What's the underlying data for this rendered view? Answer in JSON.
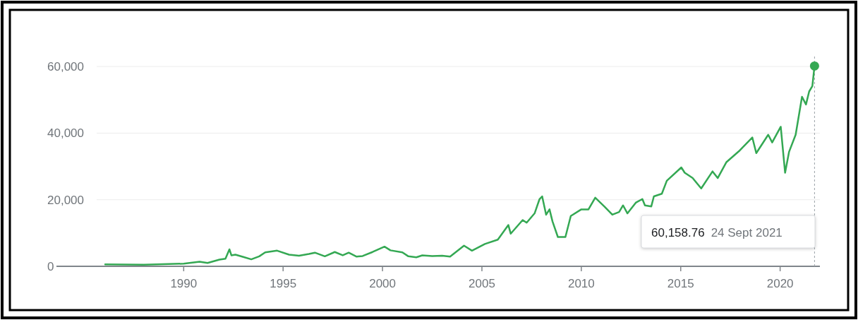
{
  "chart_data": {
    "type": "line",
    "x": [
      1986.05,
      1988.0,
      1990.0,
      1990.8,
      1991.2,
      1991.8,
      1992.1,
      1992.3,
      1992.4,
      1992.6,
      1993.0,
      1993.4,
      1993.8,
      1994.1,
      1994.7,
      1995.3,
      1995.8,
      1996.3,
      1996.6,
      1997.1,
      1997.6,
      1998.0,
      1998.3,
      1998.7,
      1999.0,
      1999.5,
      2000.1,
      2000.4,
      2001.0,
      2001.3,
      2001.7,
      2002.0,
      2002.5,
      2003.0,
      2003.4,
      2004.1,
      2004.5,
      2005.15,
      2005.8,
      2006.33,
      2006.45,
      2007.05,
      2007.25,
      2007.65,
      2007.9,
      2008.03,
      2008.23,
      2008.4,
      2008.55,
      2008.82,
      2009.2,
      2009.47,
      2010.0,
      2010.36,
      2010.7,
      2011.17,
      2011.56,
      2011.9,
      2012.1,
      2012.32,
      2012.74,
      2013.07,
      2013.2,
      2013.52,
      2013.65,
      2014.05,
      2014.3,
      2015.03,
      2015.2,
      2015.6,
      2016.03,
      2016.6,
      2016.86,
      2017.3,
      2017.97,
      2018.6,
      2018.8,
      2019.4,
      2019.6,
      2020.03,
      2020.25,
      2020.45,
      2020.78,
      2021.1,
      2021.3,
      2021.46,
      2021.62,
      2021.73
    ],
    "series": [
      {
        "color": "#34a853",
        "values": [
          600,
          500,
          800,
          1400,
          1000,
          2000,
          2300,
          5100,
          3300,
          3500,
          2800,
          2100,
          3000,
          4200,
          4700,
          3500,
          3200,
          3700,
          4100,
          3000,
          4300,
          3300,
          4100,
          2900,
          3100,
          4300,
          5900,
          4800,
          4200,
          3000,
          2700,
          3300,
          3100,
          3200,
          2900,
          6200,
          4700,
          6700,
          8000,
          12400,
          9800,
          13900,
          13100,
          15900,
          20200,
          21000,
          15500,
          17100,
          13500,
          8800,
          8800,
          15100,
          17100,
          17100,
          20600,
          17900,
          15500,
          16300,
          18300,
          15900,
          19100,
          20200,
          18300,
          18000,
          21000,
          21800,
          25700,
          29700,
          28100,
          26500,
          23400,
          28500,
          26500,
          31300,
          34800,
          38700,
          34000,
          39500,
          37200,
          41900,
          28100,
          34400,
          39500,
          50900,
          48600,
          52500,
          54100,
          60158.76
        ]
      },
      {
        "type": "scatter",
        "color": "#34a853",
        "marker": "circle",
        "x": [
          2021.73
        ],
        "values": [
          60158.76
        ]
      }
    ],
    "xlim": [
      1983.6,
      2022.0
    ],
    "ylim": [
      0,
      63000
    ],
    "xticks": [
      1990,
      1995,
      2000,
      2005,
      2010,
      2015,
      2020
    ],
    "yticks": [
      0,
      {
        "value": 20000,
        "label": "20,000"
      },
      {
        "value": 40000,
        "label": "40,000"
      },
      {
        "value": 60000,
        "label": "60,000"
      }
    ],
    "grid": "y",
    "marker": "none",
    "line_style": "solid",
    "ref_lines": [
      {
        "axis": "x",
        "value": 2021.73,
        "color": "#9aa0a6",
        "line_style": "dashed"
      }
    ],
    "annotations": [
      "60,158.76",
      "24 Sept 2021"
    ]
  }
}
